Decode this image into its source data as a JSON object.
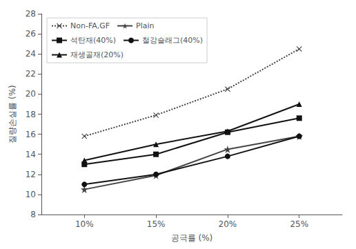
{
  "chart_data": {
    "type": "line",
    "xlabel": "공극률 (%)",
    "ylabel": "질량손실률 (%)",
    "x": [
      10,
      15,
      20,
      25
    ],
    "xlim": [
      7,
      28
    ],
    "xticks": [
      {
        "value": 10,
        "label": "10%"
      },
      {
        "value": 15,
        "label": "15%"
      },
      {
        "value": 20,
        "label": "20%"
      },
      {
        "value": 25,
        "label": "25%"
      }
    ],
    "ylim": [
      8,
      28
    ],
    "yticks": [
      8,
      10,
      12,
      14,
      16,
      18,
      20,
      22,
      24,
      26,
      28
    ],
    "grid": false,
    "legend": "upper left",
    "series": [
      {
        "name": "Non-FA,GF",
        "color": "#444444",
        "values": [
          15.8,
          17.9,
          20.5,
          24.5
        ],
        "marker": "x",
        "line_style": "dotted"
      },
      {
        "name": "Plain",
        "color": "#444444",
        "values": [
          10.5,
          11.9,
          14.5,
          15.8
        ],
        "marker": "star",
        "line_style": "solid"
      },
      {
        "name": "석탄재(40%)",
        "color": "#111111",
        "values": [
          13.0,
          14.0,
          16.2,
          17.6
        ],
        "marker": "square",
        "line_style": "solid"
      },
      {
        "name": "철강슬래그(40%)",
        "color": "#111111",
        "values": [
          11.0,
          12.0,
          13.8,
          15.8
        ],
        "marker": "circle",
        "line_style": "solid"
      },
      {
        "name": "재생골재(20%)",
        "color": "#111111",
        "values": [
          13.4,
          15.0,
          16.3,
          19.0
        ],
        "marker": "triangle",
        "line_style": "solid"
      }
    ]
  }
}
